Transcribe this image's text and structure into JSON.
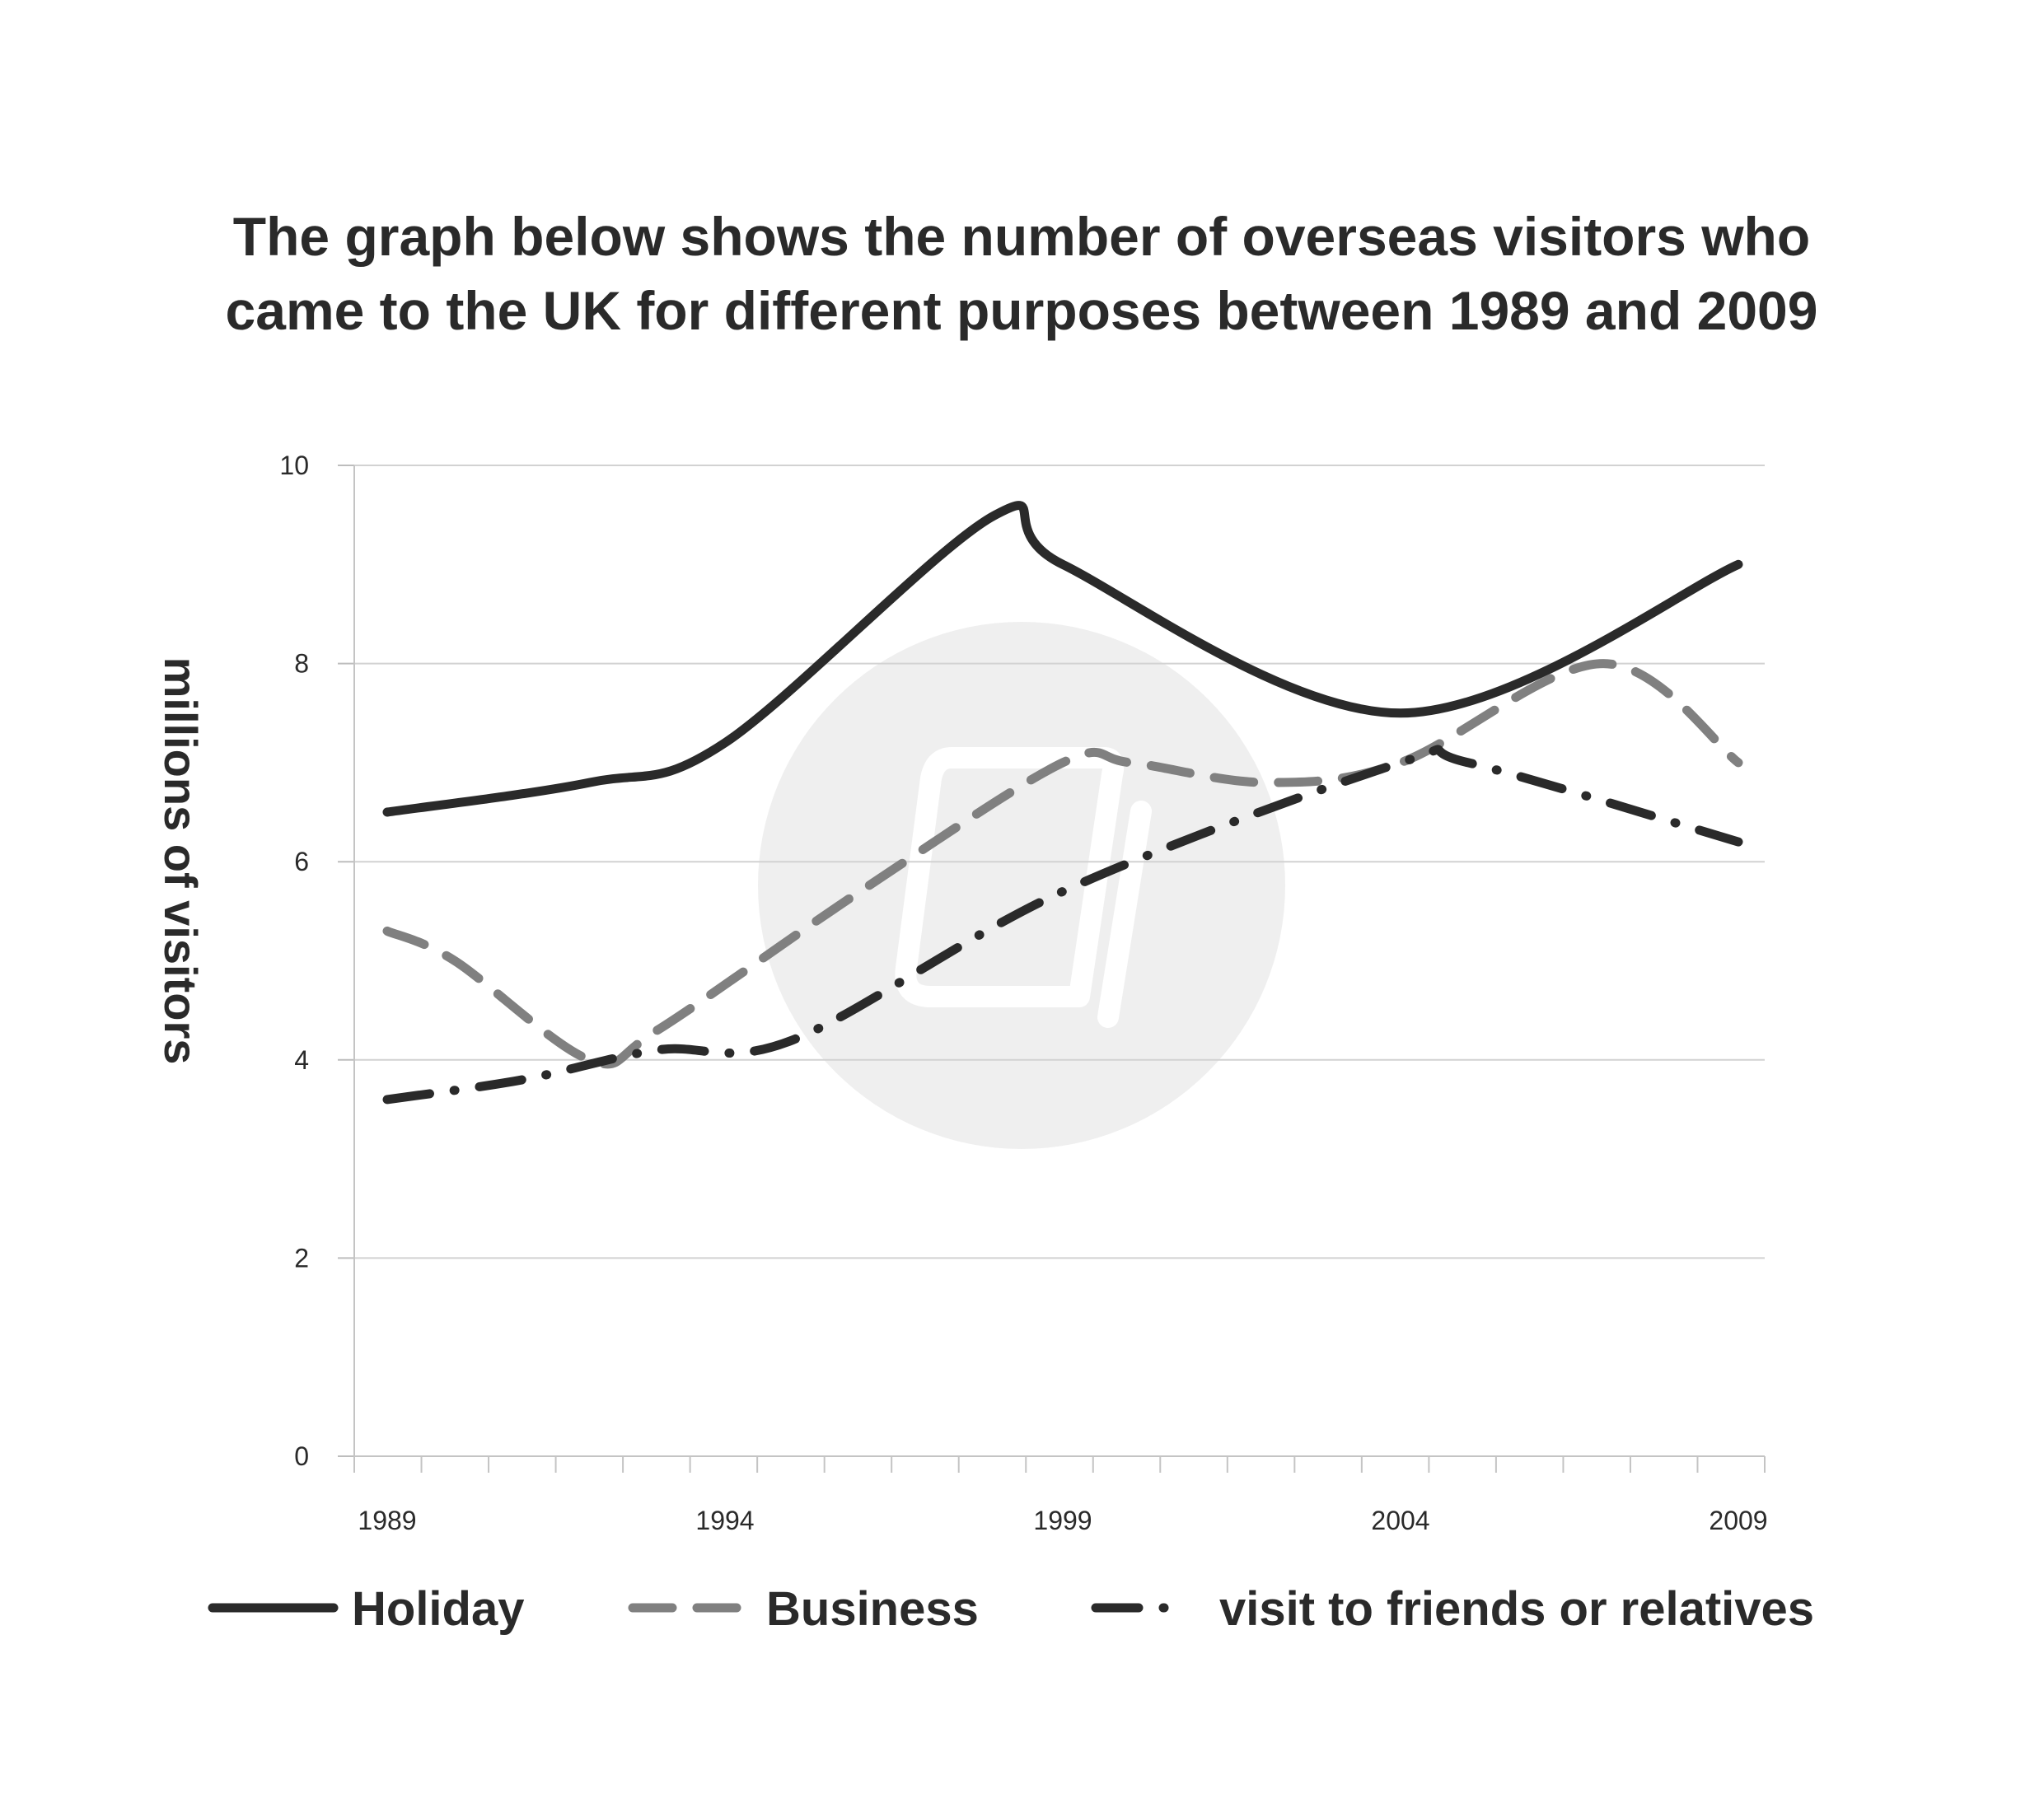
{
  "chart_data": {
    "type": "line",
    "title_lines": [
      "The graph below shows the number of overseas visitors who",
      "came to the UK for different purposes between 1989 and 2009"
    ],
    "xlabel": "",
    "ylabel": "millions of visitors",
    "xlim": [
      1989,
      2009
    ],
    "ylim": [
      0,
      10
    ],
    "x_ticks": [
      1989,
      1994,
      1999,
      2004,
      2009
    ],
    "x_tick_labels": [
      "1989",
      "1994",
      "1999",
      "2004",
      "2009"
    ],
    "y_ticks": [
      0,
      2,
      4,
      6,
      8,
      10
    ],
    "y_tick_labels": [
      "0",
      "2",
      "4",
      "6",
      "8",
      "10"
    ],
    "grid": true,
    "legend_position": "bottom",
    "series": [
      {
        "name": "Holiday",
        "style": "solid",
        "color": "#2a2a2a",
        "x": [
          1989,
          1992,
          1994,
          1998,
          1999,
          2004,
          2009
        ],
        "values": [
          6.5,
          6.8,
          7.2,
          9.5,
          9.0,
          7.5,
          9.0
        ]
      },
      {
        "name": "Business",
        "style": "dashed",
        "color": "#808080",
        "x": [
          1989,
          1990,
          1992,
          1993,
          1996,
          1999,
          2000,
          2002,
          2004,
          2007,
          2009
        ],
        "values": [
          5.3,
          5.0,
          4.0,
          4.3,
          5.7,
          7.0,
          7.0,
          6.8,
          7.0,
          8.0,
          7.0
        ]
      },
      {
        "name": "visit to friends or relatives",
        "style": "dashdot",
        "color": "#2a2a2a",
        "x": [
          1989,
          1991,
          1993,
          1995,
          1999,
          2004,
          2005,
          2009
        ],
        "values": [
          3.6,
          3.8,
          4.1,
          4.2,
          5.7,
          7.0,
          7.0,
          6.2
        ]
      }
    ],
    "watermark": "book-logo-watermark"
  }
}
